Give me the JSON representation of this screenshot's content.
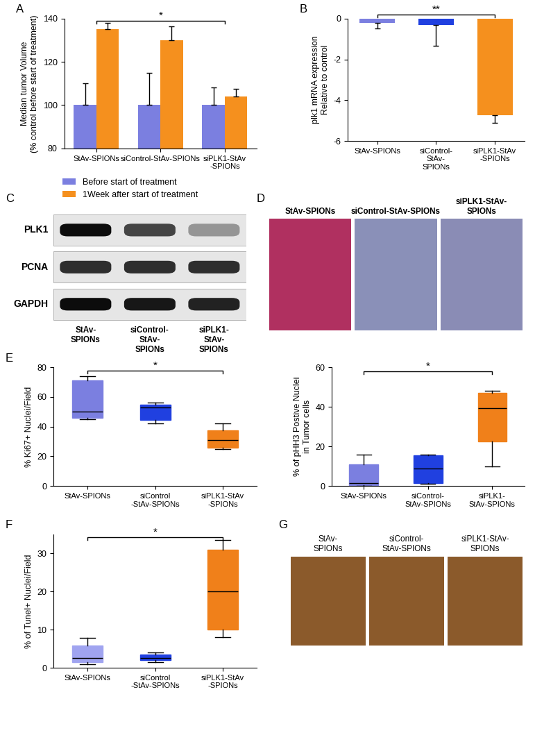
{
  "chart_data": [
    {
      "type": "bar",
      "panel": "A",
      "y_label": "Median tumor Volume\n(% control before start of treatment)",
      "categories": [
        "StAv-SPIONs",
        "siControl-StAv-SPIONs",
        "siPLK1-StAv\n-SPIONs"
      ],
      "series": [
        {
          "name": "Before start of treatment",
          "color": "#7b7fe0",
          "values": [
            100,
            100,
            100
          ],
          "errors": [
            10,
            15,
            8
          ]
        },
        {
          "name": "1Week after start of treatment",
          "color": "#f5901e",
          "values": [
            135,
            130,
            104
          ],
          "errors": [
            3,
            6.5,
            3.5
          ]
        }
      ],
      "ylim": [
        80,
        140
      ],
      "yticks": [
        80,
        100,
        120,
        140
      ],
      "legend": "upper left",
      "annotations": [
        {
          "text": "*",
          "between": [
            "StAv-SPIONs",
            "siPLK1-StAv\n-SPIONs"
          ]
        }
      ]
    },
    {
      "type": "bar",
      "panel": "B",
      "y_label": "plk1 mRNA expression\nRelative to control",
      "categories": [
        "StAv-SPIONs",
        "siControl-\nStAv-\nSPIONs",
        "siPLK1-StAv\n-SPIONs"
      ],
      "values": [
        -0.2,
        -0.3,
        -4.75
      ],
      "errors": [
        0.3,
        1.05,
        0.35
      ],
      "colors": [
        "#7b7fe0",
        "#2040e0",
        "#f5901e"
      ],
      "ylim": [
        -6,
        0
      ],
      "yticks": [
        -6,
        -4,
        -2,
        0
      ],
      "annotations": [
        {
          "text": "**",
          "between": [
            "StAv-SPIONs",
            "siPLK1-StAv\n-SPIONs"
          ]
        }
      ]
    },
    {
      "type": "box",
      "panel": "E",
      "y_label": "% Ki67+ Nuclei/Field",
      "categories": [
        "StAv-SPIONs",
        "siControl\n-StAv-SPIONs",
        "siPLK1-StAv\n-SPIONs"
      ],
      "boxes": [
        {
          "whislo": 45,
          "q1": 46,
          "med": 50,
          "q3": 71,
          "whishi": 74
        },
        {
          "whislo": 42,
          "q1": 44.5,
          "med": 53,
          "q3": 55,
          "whishi": 56
        },
        {
          "whislo": 25,
          "q1": 26,
          "med": 31,
          "q3": 37.5,
          "whishi": 42
        }
      ],
      "colors": [
        "#7b7fe0",
        "#2040e0",
        "#f0801a"
      ],
      "ylim": [
        0,
        80
      ],
      "yticks": [
        0,
        20,
        40,
        60,
        80
      ],
      "annotations": [
        {
          "text": "*",
          "between": [
            "StAv-SPIONs",
            "siPLK1-StAv\n-SPIONs"
          ]
        }
      ]
    },
    {
      "type": "box",
      "y_label": "% of pHH3 Postive Nuclei\nin Tumor cells",
      "categories": [
        "StAv-SPIONs",
        "siControl-\nStAv-SPIONs",
        "siPLK1-\nStAv-SPIONs"
      ],
      "boxes": [
        {
          "whislo": 0,
          "q1": 0.5,
          "med": 1.5,
          "q3": 11,
          "whishi": 16
        },
        {
          "whislo": 1,
          "q1": 1.5,
          "med": 9,
          "q3": 15.5,
          "whishi": 16
        },
        {
          "whislo": 10,
          "q1": 22.5,
          "med": 39.5,
          "q3": 47,
          "whishi": 48
        }
      ],
      "colors": [
        "#7b7fe0",
        "#2040e0",
        "#f0801a"
      ],
      "ylim": [
        0,
        60
      ],
      "yticks": [
        0,
        20,
        40,
        60
      ],
      "annotations": [
        {
          "text": "*",
          "between": [
            "StAv-SPIONs",
            "siPLK1-\nStAv-SPIONs"
          ]
        }
      ]
    },
    {
      "type": "box",
      "panel": "F",
      "y_label": "% of Tunel+ Nuclei/Field",
      "categories": [
        "StAv-SPIONs",
        "siControl\n-StAv-SPIONs",
        "siPLK1-StAv\n-SPIONs"
      ],
      "boxes": [
        {
          "whislo": 1,
          "q1": 1.5,
          "med": 2.5,
          "q3": 5.8,
          "whishi": 7.8
        },
        {
          "whislo": 1.5,
          "q1": 2,
          "med": 2.5,
          "q3": 3.5,
          "whishi": 4
        },
        {
          "whislo": 8,
          "q1": 10,
          "med": 20,
          "q3": 31,
          "whishi": 33.5
        }
      ],
      "colors": [
        "#a0a4f0",
        "#2040e0",
        "#f0801a"
      ],
      "ylim": [
        0,
        35
      ],
      "yticks": [
        0,
        10,
        20,
        30
      ],
      "annotations": [
        {
          "text": "*",
          "between": [
            "StAv-SPIONs",
            "siPLK1-StAv\n-SPIONs"
          ]
        }
      ]
    }
  ],
  "blot": {
    "panel": "C",
    "lanes": [
      "StAv-\nSPIONs",
      "siControl-\nStAv-\nSPIONs",
      "siPLK1-\nStAv-\nSPIONs"
    ],
    "rows": [
      {
        "label": "PLK1",
        "intensity": [
          0.95,
          0.7,
          0.35
        ]
      },
      {
        "label": "PCNA",
        "intensity": [
          0.8,
          0.8,
          0.8
        ]
      },
      {
        "label": "GAPDH",
        "intensity": [
          0.95,
          0.9,
          0.85
        ]
      }
    ]
  },
  "histology": {
    "panel": "D",
    "lanes": [
      "StAv-SPIONs",
      "siControl-StAv-SPIONs",
      "siPLK1-StAv-\nSPIONs"
    ]
  },
  "ihc": {
    "panel": "G",
    "lanes": [
      "StAv-\nSPIONs",
      "siControl-\nStAv-SPIONs",
      "siPLK1-StAv-\nSPIONs"
    ]
  }
}
